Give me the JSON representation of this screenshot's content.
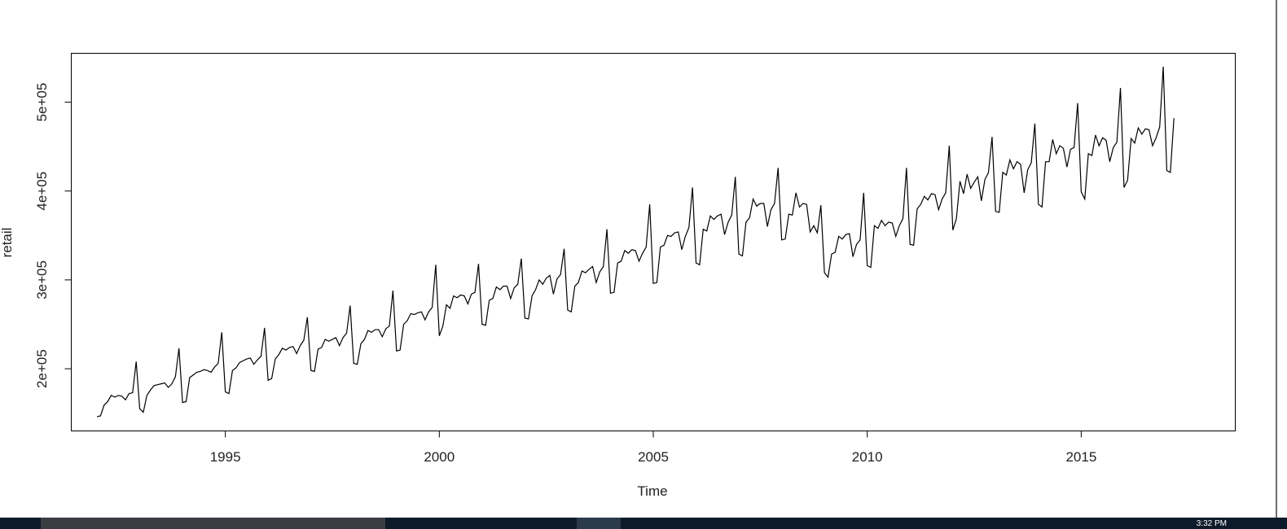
{
  "chart_data": {
    "type": "line",
    "title": "",
    "xlabel": "Time",
    "ylabel": "retail",
    "xlim": [
      1991.4,
      2018.6
    ],
    "ylim": [
      130000,
      555000
    ],
    "x_ticks": [
      1995,
      2000,
      2005,
      2010,
      2015
    ],
    "x_tick_labels": [
      "1995",
      "2000",
      "2005",
      "2010",
      "2015"
    ],
    "y_ticks": [
      200000,
      300000,
      400000,
      500000
    ],
    "y_tick_labels": [
      "2e+05",
      "3e+05",
      "4e+05",
      "5e+05"
    ],
    "grid": false,
    "legend": "none",
    "line_color": "#000000",
    "series": [
      {
        "start": 1992.0,
        "frequency": 12,
        "values": [
          146000,
          147000,
          159000,
          163000,
          170000,
          168000,
          170000,
          169000,
          165000,
          172000,
          173000,
          208000,
          155000,
          151000,
          170000,
          176000,
          181000,
          182000,
          183000,
          184000,
          179000,
          183000,
          191000,
          223000,
          162000,
          163000,
          190000,
          193000,
          196000,
          197000,
          199000,
          198000,
          196000,
          202000,
          206000,
          241000,
          174000,
          172000,
          198000,
          201000,
          207000,
          209000,
          211000,
          212000,
          205000,
          210000,
          214000,
          246000,
          187000,
          189000,
          211000,
          216000,
          223000,
          221000,
          224000,
          225000,
          217000,
          226000,
          232000,
          258000,
          198000,
          197000,
          222000,
          224000,
          233000,
          231000,
          233000,
          235000,
          226000,
          235000,
          240000,
          271000,
          206000,
          205000,
          228000,
          233000,
          243000,
          241000,
          244000,
          244000,
          236000,
          245000,
          248000,
          288000,
          220000,
          221000,
          250000,
          254000,
          262000,
          261000,
          263000,
          264000,
          255000,
          264000,
          269000,
          317000,
          237000,
          248000,
          272000,
          268000,
          282000,
          280000,
          283000,
          282000,
          273000,
          284000,
          286000,
          318000,
          250000,
          249000,
          277000,
          279000,
          292000,
          289000,
          293000,
          293000,
          279000,
          291000,
          295000,
          324000,
          257000,
          256000,
          282000,
          289000,
          300000,
          295000,
          302000,
          305000,
          284000,
          301000,
          306000,
          335000,
          266000,
          264000,
          293000,
          297000,
          310000,
          308000,
          312000,
          315000,
          297000,
          309000,
          315000,
          357000,
          285000,
          286000,
          319000,
          321000,
          333000,
          330000,
          334000,
          333000,
          321000,
          330000,
          337000,
          385000,
          296000,
          297000,
          337000,
          339000,
          350000,
          349000,
          353000,
          354000,
          334000,
          349000,
          359000,
          404000,
          319000,
          317000,
          357000,
          355000,
          372000,
          368000,
          372000,
          374000,
          351000,
          365000,
          373000,
          416000,
          329000,
          327000,
          365000,
          370000,
          391000,
          383000,
          386000,
          386000,
          360000,
          379000,
          386000,
          426000,
          345000,
          346000,
          374000,
          373000,
          398000,
          382000,
          386000,
          385000,
          354000,
          361000,
          353000,
          384000,
          308000,
          303000,
          329000,
          331000,
          349000,
          346000,
          351000,
          352000,
          326000,
          340000,
          345000,
          398000,
          316000,
          314000,
          361000,
          358000,
          367000,
          361000,
          365000,
          364000,
          349000,
          361000,
          369000,
          426000,
          340000,
          339000,
          380000,
          385000,
          394000,
          390000,
          397000,
          396000,
          379000,
          391000,
          398000,
          451000,
          356000,
          369000,
          411000,
          397000,
          419000,
          403000,
          410000,
          416000,
          389000,
          413000,
          421000,
          461000,
          377000,
          376000,
          421000,
          418000,
          435000,
          425000,
          433000,
          430000,
          398000,
          424000,
          432000,
          476000,
          385000,
          382000,
          433000,
          433000,
          458000,
          442000,
          451000,
          448000,
          427000,
          447000,
          449000,
          499000,
          399000,
          391000,
          442000,
          440000,
          463000,
          451000,
          460000,
          457000,
          433000,
          449000,
          455000,
          516000,
          404000,
          412000,
          459000,
          454000,
          471000,
          464000,
          470000,
          469000,
          451000,
          460000,
          472000,
          540000,
          423000,
          421000,
          482000
        ]
      }
    ]
  },
  "taskbar": {
    "clock": "3:32 PM"
  }
}
